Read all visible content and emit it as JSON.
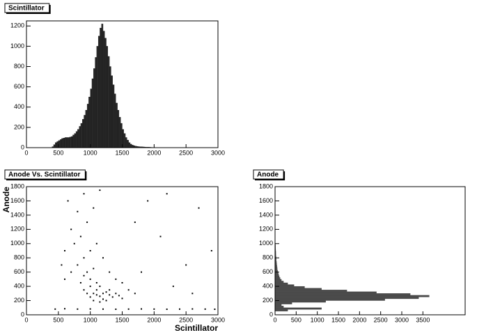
{
  "chart_data": [
    {
      "type": "histogram",
      "title": "Scintillator",
      "color": "#2a2a2a",
      "bins": [
        400,
        425,
        450,
        475,
        500,
        525,
        550,
        575,
        600,
        625,
        650,
        675,
        700,
        725,
        750,
        775,
        800,
        825,
        850,
        875,
        900,
        925,
        950,
        975,
        1000,
        1025,
        1050,
        1075,
        1100,
        1125,
        1150,
        1175,
        1200,
        1225,
        1250,
        1275,
        1300,
        1325,
        1350,
        1375,
        1400,
        1425,
        1450,
        1475,
        1500,
        1525,
        1550,
        1575,
        1600,
        1625,
        1650,
        1675,
        1700,
        1725,
        1750,
        1775,
        1800,
        1825,
        1850,
        1875,
        1900,
        1925,
        1950,
        1975,
        2000
      ],
      "values": [
        10,
        30,
        50,
        60,
        70,
        80,
        90,
        95,
        100,
        100,
        100,
        105,
        110,
        125,
        140,
        160,
        180,
        210,
        240,
        280,
        320,
        370,
        430,
        500,
        580,
        680,
        780,
        890,
        1000,
        1100,
        1180,
        1220,
        1150,
        1080,
        1000,
        900,
        800,
        710,
        620,
        530,
        440,
        370,
        300,
        240,
        180,
        140,
        100,
        75,
        50,
        35,
        25,
        20,
        15,
        12,
        10,
        9,
        8,
        7,
        6,
        5,
        5,
        4,
        3,
        2
      ],
      "xlim": [
        0,
        3000
      ],
      "xticks": [
        0,
        500,
        1000,
        1500,
        2000,
        2500,
        3000
      ],
      "ylim": [
        0,
        1250
      ],
      "yticks": [
        0,
        200,
        400,
        600,
        800,
        1000,
        1200
      ]
    },
    {
      "type": "scatter",
      "title": "Anode Vs. Scintillator",
      "x_label": "Scintillator",
      "y_label": "Anode",
      "color": "#000000",
      "x": [
        1000,
        1050,
        1100,
        1150,
        1200,
        1250,
        1300,
        1100,
        1150,
        1200,
        1050,
        950,
        900,
        1000,
        1300,
        1350,
        1400,
        1450,
        1500,
        1250,
        1150,
        1100,
        1000,
        900,
        850,
        950,
        800,
        1050,
        900,
        1000,
        750,
        850,
        1100,
        700,
        950,
        800,
        1050,
        650,
        900,
        1150,
        600,
        700,
        600,
        550,
        1200,
        1300,
        1400,
        1500,
        1600,
        1700,
        450,
        600,
        800,
        1000,
        1200,
        1400,
        1600,
        1800,
        2000,
        2200,
        2400,
        2600,
        2800,
        2950,
        1800,
        2100,
        2500,
        2700,
        2300,
        1900,
        2600,
        2900,
        2200,
        1700
      ],
      "y": [
        250,
        300,
        280,
        260,
        300,
        320,
        280,
        350,
        400,
        220,
        200,
        300,
        350,
        400,
        350,
        250,
        300,
        270,
        230,
        200,
        180,
        450,
        500,
        550,
        450,
        600,
        700,
        650,
        800,
        900,
        1000,
        1100,
        1000,
        1200,
        1300,
        1450,
        1500,
        1600,
        1700,
        1750,
        900,
        600,
        500,
        700,
        800,
        600,
        500,
        450,
        350,
        300,
        80,
        85,
        80,
        82,
        80,
        78,
        80,
        82,
        80,
        78,
        80,
        82,
        80,
        78,
        600,
        1100,
        700,
        1500,
        400,
        1600,
        300,
        900,
        1700,
        1300
      ],
      "xlim": [
        0,
        3000
      ],
      "xticks": [
        0,
        500,
        1000,
        1500,
        2000,
        2500,
        3000
      ],
      "ylim": [
        0,
        1800
      ],
      "yticks": [
        0,
        200,
        400,
        600,
        800,
        1000,
        1200,
        1400,
        1600,
        1800
      ]
    },
    {
      "type": "histogram",
      "orientation": "horizontal",
      "title": "Anode",
      "color": "#4a4a4a",
      "bins": [
        0,
        25,
        50,
        75,
        100,
        125,
        150,
        175,
        200,
        225,
        250,
        275,
        300,
        325,
        350,
        375,
        400,
        425,
        450,
        475,
        500,
        525,
        550,
        575,
        600,
        625,
        650,
        675,
        700,
        725,
        750,
        775,
        800,
        825,
        850,
        875,
        900,
        925,
        950,
        975,
        1000
      ],
      "values": [
        0,
        0,
        300,
        1100,
        200,
        150,
        400,
        1200,
        2600,
        3400,
        3650,
        3200,
        2400,
        1700,
        1100,
        700,
        450,
        300,
        200,
        150,
        120,
        100,
        85,
        75,
        65,
        55,
        50,
        45,
        40,
        35,
        30,
        28,
        25,
        22,
        20,
        18,
        15,
        13,
        12,
        10
      ],
      "xlim": [
        0,
        4500
      ],
      "xticks": [
        0,
        500,
        1000,
        1500,
        2000,
        2500,
        3000,
        3500
      ],
      "ylim": [
        0,
        1800
      ],
      "yticks": [
        0,
        200,
        400,
        600,
        800,
        1000,
        1200,
        1400,
        1600,
        1800
      ]
    }
  ]
}
